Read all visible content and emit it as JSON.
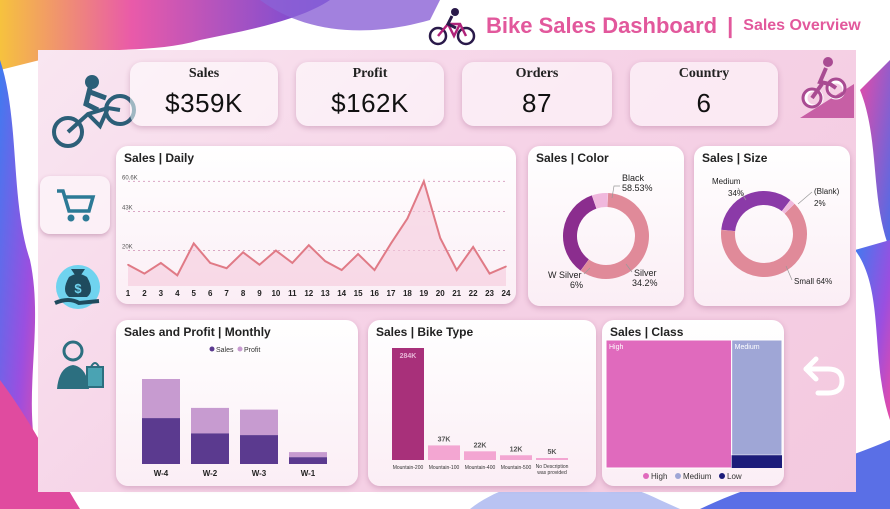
{
  "header": {
    "title": "Bike Sales Dashboard",
    "separator": "|",
    "subtitle": "Sales Overview"
  },
  "kpis": [
    {
      "label": "Sales",
      "value": "$359K"
    },
    {
      "label": "Profit",
      "value": "$162K"
    },
    {
      "label": "Orders",
      "value": "87"
    },
    {
      "label": "Country",
      "value": "6"
    }
  ],
  "sidebar": {
    "icons": [
      "cyclist-logo-icon",
      "cart-icon",
      "money-bag-icon",
      "shopper-icon"
    ],
    "right_icons": [
      "uphill-cyclist-icon",
      "back-arrow-icon"
    ]
  },
  "colors": {
    "accent": "#e2589c",
    "line": "#e07a86",
    "purple_dark": "#5b3a8f",
    "purple_light": "#c79bd0",
    "magenta": "#a8307a",
    "pink": "#f3a6d2",
    "class_high": "#e06abd",
    "class_medium": "#9fa6d6",
    "class_low": "#1c1c7a"
  },
  "charts": {
    "daily": {
      "title": "Sales | Daily",
      "y_ticks": [
        "60.6K",
        "43K",
        "20K"
      ]
    },
    "color": {
      "title": "Sales | Color",
      "labels": [
        {
          "line1": "Black",
          "line2": "58.53%"
        },
        {
          "line1": "Silver",
          "line2": "34.2%"
        },
        {
          "line1": "W Silver",
          "line2": "6%"
        }
      ]
    },
    "size": {
      "title": "Sales | Size",
      "labels": [
        {
          "line1": "Medium",
          "line2": "34%"
        },
        {
          "line1": "(Blank)",
          "line2": "2%"
        },
        {
          "line1": "Small 64%",
          "line2": ""
        }
      ]
    },
    "monthly": {
      "title": "Sales and Profit | Monthly",
      "legend": [
        "Sales",
        "Profit"
      ]
    },
    "bike_type": {
      "title": "Sales | Bike Type"
    },
    "class": {
      "title": "Sales | Class",
      "legend": [
        "High",
        "Medium",
        "Low"
      ]
    }
  },
  "chart_data": [
    {
      "type": "line",
      "title": "Sales | Daily",
      "x": [
        1,
        2,
        3,
        4,
        5,
        6,
        7,
        8,
        9,
        10,
        11,
        12,
        13,
        14,
        15,
        16,
        17,
        18,
        19,
        20,
        21,
        22,
        23,
        24
      ],
      "values": [
        12000,
        7000,
        13000,
        6000,
        24000,
        13000,
        10000,
        19000,
        12000,
        20000,
        13000,
        23000,
        14000,
        9000,
        18000,
        9000,
        24000,
        38000,
        59000,
        27000,
        9000,
        22000,
        7000,
        11000
      ],
      "ylim": [
        0,
        62000
      ],
      "y_ticks": [
        "60.6K",
        "43K",
        "20K"
      ]
    },
    {
      "type": "pie",
      "title": "Sales | Color",
      "series": [
        {
          "name": "Black",
          "value": 58.53
        },
        {
          "name": "Silver",
          "value": 34.2
        },
        {
          "name": "W Silver",
          "value": 6
        }
      ]
    },
    {
      "type": "pie",
      "title": "Sales | Size",
      "series": [
        {
          "name": "Small",
          "value": 64
        },
        {
          "name": "Medium",
          "value": 34
        },
        {
          "name": "(Blank)",
          "value": 2
        }
      ]
    },
    {
      "type": "bar",
      "title": "Sales and Profit | Monthly",
      "categories": [
        "W-4",
        "W-2",
        "W-3",
        "W-1"
      ],
      "series": [
        {
          "name": "Sales",
          "values": [
            100,
            66,
            64,
            14
          ]
        },
        {
          "name": "Profit",
          "values": [
            46,
            30,
            30,
            6
          ]
        }
      ]
    },
    {
      "type": "bar",
      "title": "Sales | Bike Type",
      "categories": [
        "Mountain-200",
        "Mountain-100",
        "Mountain-400",
        "Mountain-500",
        "No Description was provided"
      ],
      "values": [
        284,
        37,
        22,
        12,
        5
      ],
      "data_labels": [
        "284K",
        "37K",
        "22K",
        "12K",
        "5K"
      ]
    },
    {
      "type": "heatmap",
      "title": "Sales | Class",
      "categories": [
        "High",
        "Medium",
        "Low"
      ],
      "values": [
        70,
        27,
        3
      ]
    }
  ]
}
